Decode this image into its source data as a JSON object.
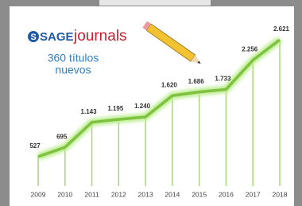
{
  "logo": {
    "brand": "SAGE",
    "product": "journals"
  },
  "annotation": [
    "360 títulos",
    "nuevos"
  ],
  "chart_data": {
    "type": "line",
    "categories": [
      "2009",
      "2010",
      "2011",
      "2012",
      "2013",
      "2014",
      "2015",
      "2016",
      "2017",
      "2018"
    ],
    "values": [
      527,
      695,
      1143,
      1195,
      1240,
      1620,
      1686,
      1733,
      2256,
      2621
    ],
    "value_labels": [
      "527",
      "695",
      "1.143",
      "1.195",
      "1.240",
      "1.620",
      "1.686",
      "1.733",
      "2.256",
      "2.621"
    ],
    "color": "#7fc241"
  }
}
